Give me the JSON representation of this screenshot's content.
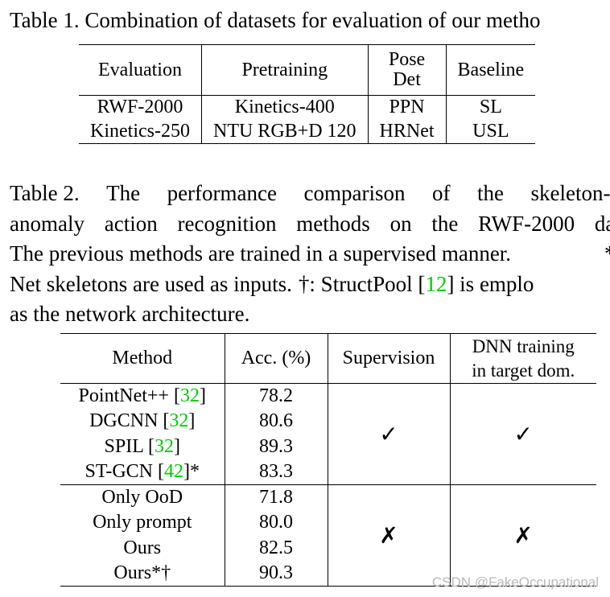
{
  "table1": {
    "caption": "Table 1. Combination of datasets for evaluation of our metho",
    "headers": [
      "Evaluation",
      "Pretraining",
      "Pose",
      "Det",
      "Baseline"
    ],
    "rows": [
      [
        "RWF-2000",
        "Kinetics-400",
        "PPN",
        "SL"
      ],
      [
        "Kinetics-250",
        "NTU RGB+D 120",
        "HRNet",
        "USL"
      ]
    ]
  },
  "table2": {
    "caption_lines": [
      [
        "Table 2.",
        "The",
        "performance",
        "comparison",
        "of",
        "the",
        "skeleton-b"
      ],
      [
        "anomaly",
        "action",
        "recognition",
        "methods",
        "on",
        "the",
        "RWF-2000",
        "dat"
      ],
      [
        "The previous methods are trained in a supervised manner.",
        "*:"
      ],
      [
        "Net skeletons are used as inputs.",
        "†: StructPool [",
        "12",
        "] is emplo"
      ],
      [
        "as the network architecture."
      ]
    ],
    "headers": [
      "Method",
      "Acc. (%)",
      "Supervision",
      "DNN training",
      "in target dom."
    ],
    "rows": [
      {
        "method": "PointNet++ [",
        "ref": "32",
        "suffix": "]",
        "acc": "78.2"
      },
      {
        "method": "DGCNN [",
        "ref": "32",
        "suffix": "]",
        "acc": "80.6"
      },
      {
        "method": "SPIL [",
        "ref": "32",
        "suffix": "]",
        "acc": "89.3"
      },
      {
        "method": "ST-GCN [",
        "ref": "42",
        "suffix": "]*",
        "acc": "83.3"
      },
      {
        "method": "Only OoD",
        "ref": "",
        "suffix": "",
        "acc": "71.8"
      },
      {
        "method": "Only prompt",
        "ref": "",
        "suffix": "",
        "acc": "80.0"
      },
      {
        "method": "Ours",
        "ref": "",
        "suffix": "",
        "acc": "82.5"
      },
      {
        "method": "Ours*†",
        "ref": "",
        "suffix": "",
        "acc": "90.3"
      }
    ],
    "group1_marks": [
      "✓",
      "✓"
    ],
    "group2_marks": [
      "✗",
      "✗"
    ]
  },
  "watermark": "CSDN @FakeOccupational",
  "colors": {
    "citation": "#00cc00",
    "watermark": "#b9b9b9"
  }
}
